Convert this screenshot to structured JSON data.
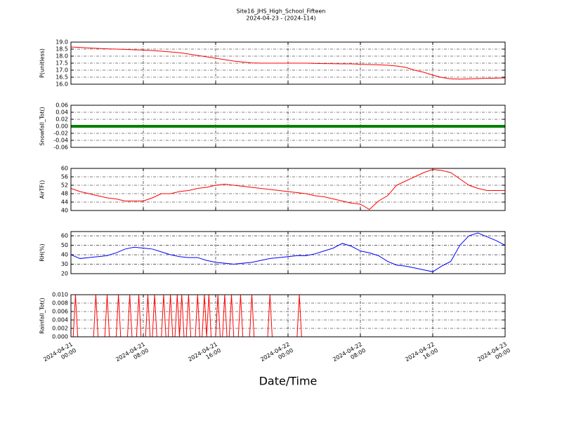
{
  "chart_data": [
    {
      "type": "line",
      "title": "Site16_JHS_High_School_Fifteen",
      "subtitle": "2024-04-23 - (2024-114)",
      "ylabel": "P(unitless)",
      "color": "#ff0000",
      "xlim": [
        "2024-04-21 00:00",
        "2024-04-23 00:00"
      ],
      "ylim": [
        16,
        19
      ],
      "yticks": [
        {
          "value": 16,
          "label": "16.0"
        },
        {
          "value": 16.5,
          "label": "16.5"
        },
        {
          "value": 17,
          "label": "17.0"
        },
        {
          "value": 17.5,
          "label": "17.5"
        },
        {
          "value": 18,
          "label": "18.0"
        },
        {
          "value": 18.5,
          "label": "18.5"
        },
        {
          "value": 19,
          "label": "19.0"
        }
      ],
      "x": [
        "2024-04-21 00:00",
        "2024-04-21 01:00",
        "2024-04-21 02:00",
        "2024-04-21 03:00",
        "2024-04-21 04:00",
        "2024-04-21 05:00",
        "2024-04-21 06:00",
        "2024-04-21 07:00",
        "2024-04-21 08:00",
        "2024-04-21 09:00",
        "2024-04-21 10:00",
        "2024-04-21 11:00",
        "2024-04-21 12:00",
        "2024-04-21 13:00",
        "2024-04-21 14:00",
        "2024-04-21 15:00",
        "2024-04-21 16:00",
        "2024-04-21 17:00",
        "2024-04-21 18:00",
        "2024-04-21 19:00",
        "2024-04-21 20:00",
        "2024-04-21 21:00",
        "2024-04-21 22:00",
        "2024-04-21 23:00",
        "2024-04-22 00:00",
        "2024-04-22 01:00",
        "2024-04-22 02:00",
        "2024-04-22 03:00",
        "2024-04-22 04:00",
        "2024-04-22 05:00",
        "2024-04-22 06:00",
        "2024-04-22 07:00",
        "2024-04-22 08:00",
        "2024-04-22 09:00",
        "2024-04-22 10:00",
        "2024-04-22 11:00",
        "2024-04-22 12:00",
        "2024-04-22 13:00",
        "2024-04-22 14:00",
        "2024-04-22 15:00",
        "2024-04-22 16:00",
        "2024-04-22 17:00",
        "2024-04-22 18:00",
        "2024-04-22 19:00",
        "2024-04-22 20:00",
        "2024-04-22 21:00",
        "2024-04-22 22:00",
        "2024-04-22 23:00",
        "2024-04-23 00:00"
      ],
      "values": [
        18.65,
        18.62,
        18.58,
        18.55,
        18.52,
        18.5,
        18.48,
        18.45,
        18.43,
        18.4,
        18.35,
        18.3,
        18.25,
        18.15,
        18.05,
        17.95,
        17.85,
        17.75,
        17.65,
        17.58,
        17.52,
        17.5,
        17.5,
        17.5,
        17.5,
        17.5,
        17.5,
        17.48,
        17.47,
        17.46,
        17.45,
        17.45,
        17.42,
        17.4,
        17.38,
        17.35,
        17.3,
        17.2,
        17.0,
        16.85,
        16.65,
        16.48,
        16.38,
        16.36,
        16.38,
        16.4,
        16.42,
        16.43,
        16.45
      ]
    },
    {
      "type": "line",
      "ylabel": "Snowfall_Tot()",
      "color": "#008000",
      "xlim": [
        "2024-04-21 00:00",
        "2024-04-23 00:00"
      ],
      "ylim": [
        -0.06,
        0.06
      ],
      "yticks": [
        -0.06,
        -0.04,
        -0.02,
        {
          "value": 0,
          "label": "0.00"
        },
        0.02,
        0.04,
        0.06
      ],
      "x": [
        "2024-04-21 00:00",
        "2024-04-21 01:00",
        "2024-04-21 02:00",
        "2024-04-21 03:00",
        "2024-04-21 04:00",
        "2024-04-21 05:00",
        "2024-04-21 06:00",
        "2024-04-21 07:00",
        "2024-04-21 08:00",
        "2024-04-21 09:00",
        "2024-04-21 10:00",
        "2024-04-21 11:00",
        "2024-04-21 12:00",
        "2024-04-21 13:00",
        "2024-04-21 14:00",
        "2024-04-21 15:00",
        "2024-04-21 16:00",
        "2024-04-21 17:00",
        "2024-04-21 18:00",
        "2024-04-21 19:00",
        "2024-04-21 20:00",
        "2024-04-21 21:00",
        "2024-04-21 22:00",
        "2024-04-21 23:00",
        "2024-04-22 00:00",
        "2024-04-22 01:00",
        "2024-04-22 02:00",
        "2024-04-22 03:00",
        "2024-04-22 04:00",
        "2024-04-22 05:00",
        "2024-04-22 06:00",
        "2024-04-22 07:00",
        "2024-04-22 08:00",
        "2024-04-22 09:00",
        "2024-04-22 10:00",
        "2024-04-22 11:00",
        "2024-04-22 12:00",
        "2024-04-22 13:00",
        "2024-04-22 14:00",
        "2024-04-22 15:00",
        "2024-04-22 16:00",
        "2024-04-22 17:00",
        "2024-04-22 18:00",
        "2024-04-22 19:00",
        "2024-04-22 20:00",
        "2024-04-22 21:00",
        "2024-04-22 22:00",
        "2024-04-22 23:00",
        "2024-04-23 00:00"
      ],
      "values": [
        0,
        0,
        0,
        0,
        0,
        0,
        0,
        0,
        0,
        0,
        0,
        0,
        0,
        0,
        0,
        0,
        0,
        0,
        0,
        0,
        0,
        0,
        0,
        0,
        0,
        0,
        0,
        0,
        0,
        0,
        0,
        0,
        0,
        0,
        0,
        0,
        0,
        0,
        0,
        0,
        0,
        0,
        0,
        0,
        0,
        0,
        0,
        0,
        0
      ]
    },
    {
      "type": "line",
      "ylabel": "AirTF()",
      "color": "#ff0000",
      "xlim": [
        "2024-04-21 00:00",
        "2024-04-23 00:00"
      ],
      "ylim": [
        40,
        60
      ],
      "yticks": [
        40,
        44,
        48,
        52,
        56,
        60
      ],
      "x": [
        "2024-04-21 00:00",
        "2024-04-21 01:00",
        "2024-04-21 02:00",
        "2024-04-21 03:00",
        "2024-04-21 04:00",
        "2024-04-21 05:00",
        "2024-04-21 06:00",
        "2024-04-21 07:00",
        "2024-04-21 08:00",
        "2024-04-21 09:00",
        "2024-04-21 10:00",
        "2024-04-21 11:00",
        "2024-04-21 12:00",
        "2024-04-21 13:00",
        "2024-04-21 14:00",
        "2024-04-21 15:00",
        "2024-04-21 16:00",
        "2024-04-21 17:00",
        "2024-04-21 18:00",
        "2024-04-21 19:00",
        "2024-04-21 20:00",
        "2024-04-21 21:00",
        "2024-04-21 22:00",
        "2024-04-21 23:00",
        "2024-04-22 00:00",
        "2024-04-22 01:00",
        "2024-04-22 02:00",
        "2024-04-22 03:00",
        "2024-04-22 04:00",
        "2024-04-22 05:00",
        "2024-04-22 06:00",
        "2024-04-22 07:00",
        "2024-04-22 08:00",
        "2024-04-22 09:00",
        "2024-04-22 10:00",
        "2024-04-22 11:00",
        "2024-04-22 12:00",
        "2024-04-22 13:00",
        "2024-04-22 14:00",
        "2024-04-22 15:00",
        "2024-04-22 16:00",
        "2024-04-22 17:00",
        "2024-04-22 18:00",
        "2024-04-22 19:00",
        "2024-04-22 20:00",
        "2024-04-22 21:00",
        "2024-04-22 22:00",
        "2024-04-22 23:00",
        "2024-04-23 00:00"
      ],
      "values": [
        50.5,
        49,
        48,
        47,
        46,
        45.5,
        44.5,
        44.5,
        44.5,
        46,
        48,
        48,
        49,
        49.5,
        50.5,
        51,
        52,
        52.5,
        52,
        51.5,
        51,
        50.5,
        50,
        49.5,
        49,
        48.5,
        48,
        47,
        46.5,
        45.5,
        44.5,
        43.5,
        43,
        40.5,
        44.5,
        47,
        52,
        54,
        56,
        58,
        59.5,
        59,
        58,
        55,
        52,
        50.5,
        49.5,
        49.5,
        49.5
      ]
    },
    {
      "type": "line",
      "ylabel": "RH(%)",
      "color": "#0000ff",
      "xlim": [
        "2024-04-21 00:00",
        "2024-04-23 00:00"
      ],
      "ylim": [
        20,
        64.5
      ],
      "yticks": [
        20,
        30,
        40,
        50,
        60
      ],
      "x": [
        "2024-04-21 00:00",
        "2024-04-21 01:00",
        "2024-04-21 02:00",
        "2024-04-21 03:00",
        "2024-04-21 04:00",
        "2024-04-21 05:00",
        "2024-04-21 06:00",
        "2024-04-21 07:00",
        "2024-04-21 08:00",
        "2024-04-21 09:00",
        "2024-04-21 10:00",
        "2024-04-21 11:00",
        "2024-04-21 12:00",
        "2024-04-21 13:00",
        "2024-04-21 14:00",
        "2024-04-21 15:00",
        "2024-04-21 16:00",
        "2024-04-21 17:00",
        "2024-04-21 18:00",
        "2024-04-21 19:00",
        "2024-04-21 20:00",
        "2024-04-21 21:00",
        "2024-04-21 22:00",
        "2024-04-21 23:00",
        "2024-04-22 00:00",
        "2024-04-22 01:00",
        "2024-04-22 02:00",
        "2024-04-22 03:00",
        "2024-04-22 04:00",
        "2024-04-22 05:00",
        "2024-04-22 06:00",
        "2024-04-22 07:00",
        "2024-04-22 08:00",
        "2024-04-22 09:00",
        "2024-04-22 10:00",
        "2024-04-22 11:00",
        "2024-04-22 12:00",
        "2024-04-22 13:00",
        "2024-04-22 14:00",
        "2024-04-22 15:00",
        "2024-04-22 16:00",
        "2024-04-22 17:00",
        "2024-04-22 18:00",
        "2024-04-22 19:00",
        "2024-04-22 20:00",
        "2024-04-22 21:00",
        "2024-04-22 22:00",
        "2024-04-22 23:00",
        "2024-04-23 00:00"
      ],
      "values": [
        40,
        36,
        37,
        38,
        39,
        42,
        46,
        48,
        47,
        46,
        43,
        40,
        38,
        37,
        37,
        34,
        32,
        31,
        30,
        31,
        32,
        34,
        36,
        37,
        38,
        39,
        39,
        41,
        44,
        47,
        52,
        49,
        44,
        42,
        39,
        33,
        29,
        28,
        26,
        24,
        22,
        28,
        33,
        50,
        60,
        63,
        59,
        55,
        50
      ]
    },
    {
      "type": "line",
      "ylabel": "Rainfall_Tot()",
      "xlabel": "Date/Time",
      "color": "#ff0000",
      "xlim": [
        "2024-04-21 00:00",
        "2024-04-23 00:00"
      ],
      "xticks": [
        {
          "value": "2024-04-21 00:00",
          "label": "2024-04-21\n00:00"
        },
        {
          "value": "2024-04-21 08:00",
          "label": "2024-04-21\n08:00"
        },
        {
          "value": "2024-04-21 16:00",
          "label": "2024-04-21\n16:00"
        },
        {
          "value": "2024-04-22 00:00",
          "label": "2024-04-22\n00:00"
        },
        {
          "value": "2024-04-22 08:00",
          "label": "2024-04-22\n08:00"
        },
        {
          "value": "2024-04-22 16:00",
          "label": "2024-04-22\n16:00"
        },
        {
          "value": "2024-04-23 00:00",
          "label": "2024-04-23\n00:00"
        }
      ],
      "ylim": [
        0,
        0.01
      ],
      "yticks": [
        {
          "value": 0,
          "label": "0.000"
        },
        0.002,
        0.004,
        0.006,
        0.008,
        {
          "value": 0.01,
          "label": "0.010"
        }
      ],
      "x": [
        "2024-04-21 00:00",
        "2024-04-21 00:15",
        "2024-04-21 00:30",
        "2024-04-21 00:45",
        "2024-04-21 02:30",
        "2024-04-21 02:45",
        "2024-04-21 03:00",
        "2024-04-21 03:45",
        "2024-04-21 04:00",
        "2024-04-21 04:15",
        "2024-04-21 05:00",
        "2024-04-21 05:15",
        "2024-04-21 05:30",
        "2024-04-21 06:15",
        "2024-04-21 06:30",
        "2024-04-21 06:45",
        "2024-04-21 07:15",
        "2024-04-21 07:30",
        "2024-04-21 07:45",
        "2024-04-21 08:15",
        "2024-04-21 08:30",
        "2024-04-21 08:45",
        "2024-04-21 09:00",
        "2024-04-21 09:15",
        "2024-04-21 09:30",
        "2024-04-21 10:00",
        "2024-04-21 10:15",
        "2024-04-21 10:30",
        "2024-04-21 10:45",
        "2024-04-21 11:00",
        "2024-04-21 11:15",
        "2024-04-21 11:30",
        "2024-04-21 11:45",
        "2024-04-21 12:00",
        "2024-04-21 12:15",
        "2024-04-21 12:30",
        "2024-04-21 12:45",
        "2024-04-21 13:00",
        "2024-04-21 13:15",
        "2024-04-21 13:45",
        "2024-04-21 14:00",
        "2024-04-21 14:15",
        "2024-04-21 14:30",
        "2024-04-21 14:45",
        "2024-04-21 15:00",
        "2024-04-21 15:15",
        "2024-04-21 15:30",
        "2024-04-21 16:00",
        "2024-04-21 16:15",
        "2024-04-21 16:30",
        "2024-04-21 16:45",
        "2024-04-21 17:00",
        "2024-04-21 17:15",
        "2024-04-21 17:30",
        "2024-04-21 17:45",
        "2024-04-21 18:00",
        "2024-04-21 18:30",
        "2024-04-21 18:45",
        "2024-04-21 19:00",
        "2024-04-21 19:45",
        "2024-04-21 20:00",
        "2024-04-21 20:15",
        "2024-04-21 21:45",
        "2024-04-21 22:00",
        "2024-04-21 22:15",
        "2024-04-22 01:00",
        "2024-04-22 01:15",
        "2024-04-22 01:30",
        "2024-04-23 00:00"
      ],
      "values": [
        0,
        0,
        0.01,
        0,
        0,
        0.01,
        0,
        0,
        0.01,
        0,
        0,
        0.01,
        0,
        0,
        0.01,
        0,
        0,
        0.01,
        0,
        0,
        0.01,
        0,
        0,
        0.01,
        0,
        0,
        0.01,
        0,
        0,
        0.01,
        0,
        0,
        0.01,
        0,
        0.01,
        0,
        0,
        0.01,
        0,
        0,
        0.01,
        0,
        0,
        0.01,
        0,
        0.01,
        0,
        0,
        0.01,
        0,
        0,
        0.01,
        0,
        0,
        0.01,
        0,
        0,
        0.01,
        0,
        0,
        0.01,
        0,
        0,
        0.01,
        0,
        0,
        0.01,
        0,
        0
      ]
    }
  ]
}
